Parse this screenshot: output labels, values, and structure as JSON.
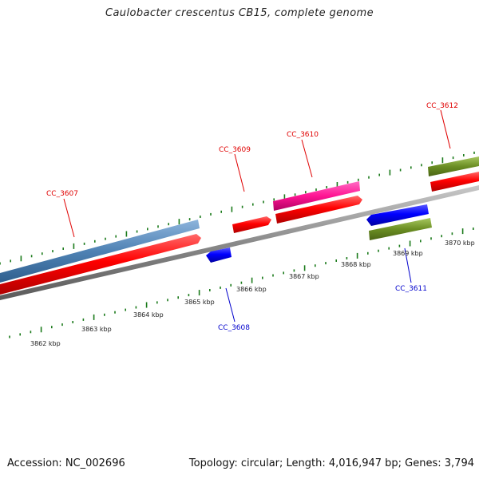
{
  "title": "Caulobacter crescentus CB15, complete genome",
  "footer": {
    "accession": "Accession: NC_002696",
    "summary": "Topology: circular; Length: 4,016,947 bp; Genes: 3,794"
  },
  "colors": {
    "background": "#ffffff",
    "backbone": "#8a8a8a",
    "cds": "#ff0000",
    "gene_blue": "#0000ff",
    "gene_steelblue": "#4f82b4",
    "gene_pink": "#ff1493",
    "gene_olive": "#6b8e23",
    "tick": "#1a7a1a",
    "label_forward": "#e00000",
    "label_reverse": "#0000cc"
  },
  "scale_labels": [
    "3862 kbp",
    "3863 kbp",
    "3864 kbp",
    "3865 kbp",
    "3866 kbp",
    "3867 kbp",
    "3868 kbp",
    "3869 kbp",
    "3870 kbp"
  ],
  "gene_labels": [
    {
      "text": "CC_3607",
      "strand": "forward"
    },
    {
      "text": "CC_3608",
      "strand": "reverse"
    },
    {
      "text": "CC_3609",
      "strand": "forward"
    },
    {
      "text": "CC_3610",
      "strand": "forward"
    },
    {
      "text": "CC_3611",
      "strand": "reverse"
    },
    {
      "text": "CC_3612",
      "strand": "forward"
    }
  ]
}
